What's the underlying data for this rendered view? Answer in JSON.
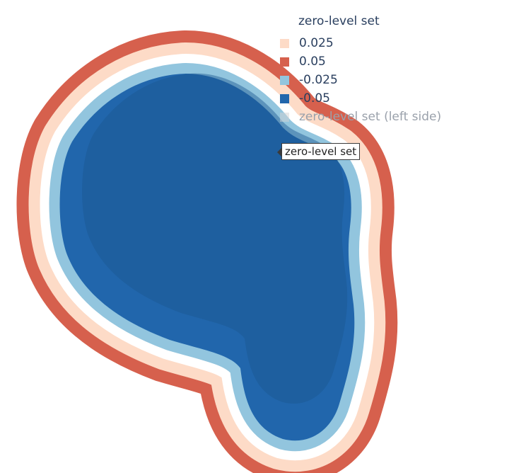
{
  "legend": {
    "title": "zero-level set",
    "items": [
      {
        "label": "0.025",
        "color": "#fddbc7",
        "dim": false
      },
      {
        "label": "0.05",
        "color": "#d6604d",
        "dim": false
      },
      {
        "label": "-0.025",
        "color": "#92c5de",
        "dim": false
      },
      {
        "label": "-0.05",
        "color": "#2166ac",
        "dim": false
      },
      {
        "label": "zero-level set (left side)",
        "color": "#d3d3d3",
        "dim": true
      }
    ]
  },
  "hover": {
    "text": "zero-level set"
  },
  "chart_data": {
    "type": "3d-surface",
    "title": "",
    "legend_title": "zero-level set",
    "legend_position": "top-right",
    "series": [
      {
        "name": "0.05",
        "color": "#d6604d",
        "visible": true
      },
      {
        "name": "0.025",
        "color": "#fddbc7",
        "visible": true
      },
      {
        "name": "zero-level set",
        "color": "#ffffff",
        "visible": true
      },
      {
        "name": "-0.025",
        "color": "#92c5de",
        "visible": true
      },
      {
        "name": "-0.05",
        "color": "#2166ac",
        "visible": true
      },
      {
        "name": "zero-level set (left side)",
        "color": "#d3d3d3",
        "visible": false
      }
    ],
    "level_values": [
      0.05,
      0.025,
      0,
      -0.025,
      -0.05
    ],
    "grid": false
  }
}
